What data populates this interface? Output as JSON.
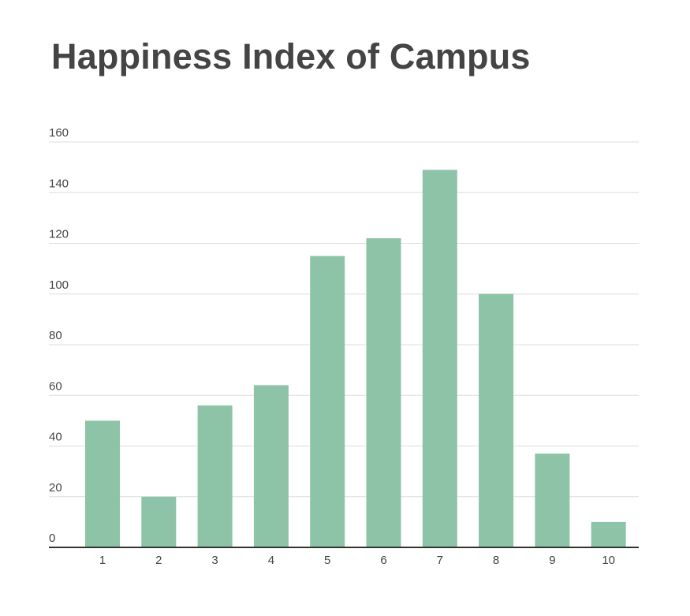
{
  "chart_data": {
    "type": "bar",
    "title": "Happiness Index of Campus",
    "xlabel": "",
    "ylabel": "",
    "categories": [
      "1",
      "2",
      "3",
      "4",
      "5",
      "6",
      "7",
      "8",
      "9",
      "10"
    ],
    "values": [
      50,
      20,
      56,
      64,
      115,
      122,
      149,
      100,
      37,
      10
    ],
    "ylim": [
      0,
      160
    ],
    "yticks": [
      0,
      20,
      40,
      60,
      80,
      100,
      120,
      140,
      160
    ],
    "grid": true,
    "legend": "none",
    "colors": {
      "bar": "#8dc3a7",
      "gridline": "#dddddd",
      "axis": "#333333",
      "text": "#444444"
    }
  }
}
